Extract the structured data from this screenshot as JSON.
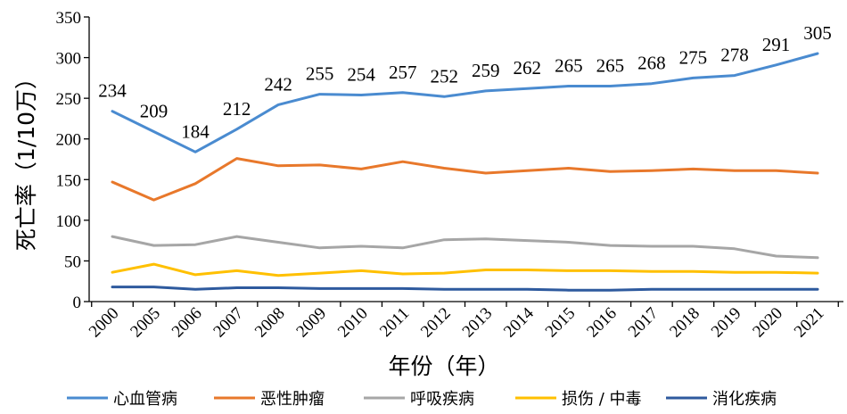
{
  "chart_data": {
    "type": "line",
    "xlabel": "年份（年）",
    "ylabel": "死亡率（1/10万）",
    "ylim": [
      0,
      350
    ],
    "yticks": [
      0,
      50,
      100,
      150,
      200,
      250,
      300,
      350
    ],
    "categories": [
      "2000",
      "2005",
      "2006",
      "2007",
      "2008",
      "2009",
      "2010",
      "2011",
      "2012",
      "2013",
      "2014",
      "2015",
      "2016",
      "2017",
      "2018",
      "2019",
      "2020",
      "2021"
    ],
    "grid": false,
    "legend_position": "bottom",
    "series": [
      {
        "name": "心血管病",
        "color": "#4a8bd0",
        "values": [
          234,
          209,
          184,
          212,
          242,
          255,
          254,
          257,
          252,
          259,
          262,
          265,
          265,
          268,
          275,
          278,
          291,
          305
        ],
        "labels": [
          "234",
          "209",
          "184",
          "212",
          "242",
          "255",
          "254",
          "257",
          "252",
          "259",
          "262",
          "265",
          "265",
          "268",
          "275",
          "278",
          "291",
          "305"
        ]
      },
      {
        "name": "恶性肿瘤",
        "color": "#e8782b",
        "values": [
          147,
          125,
          145,
          176,
          167,
          168,
          163,
          172,
          164,
          158,
          161,
          164,
          160,
          161,
          163,
          161,
          161,
          158
        ]
      },
      {
        "name": "呼吸疾病",
        "color": "#a6a6a6",
        "values": [
          80,
          69,
          70,
          80,
          73,
          66,
          68,
          66,
          76,
          77,
          75,
          73,
          69,
          68,
          68,
          65,
          56,
          54
        ]
      },
      {
        "name": "损伤 / 中毒",
        "color": "#ffc000",
        "values": [
          36,
          46,
          33,
          38,
          32,
          35,
          38,
          34,
          35,
          39,
          39,
          38,
          38,
          37,
          37,
          36,
          36,
          35
        ]
      },
      {
        "name": "消化疾病",
        "color": "#2e5a9e",
        "values": [
          18,
          18,
          15,
          17,
          17,
          16,
          16,
          16,
          15,
          15,
          15,
          14,
          14,
          15,
          15,
          15,
          15,
          15
        ]
      }
    ]
  }
}
